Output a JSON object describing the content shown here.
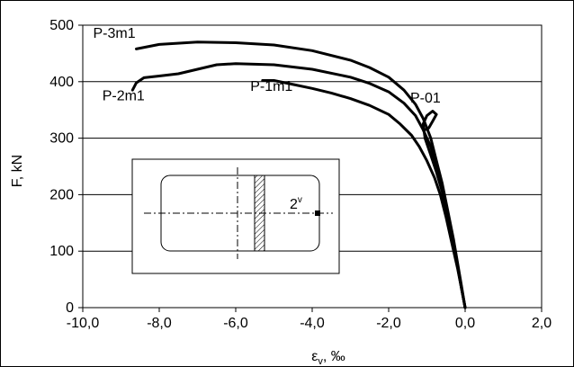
{
  "chart_data": {
    "type": "line",
    "title": "",
    "xlabel_main": "ε",
    "xlabel_sub": "v",
    "xlabel_rest": ", ‰",
    "ylabel": "F, kN",
    "xlim": [
      -10,
      2
    ],
    "ylim": [
      0,
      500
    ],
    "x_tick_values": [
      -10,
      -8,
      -6,
      -4,
      -2,
      0,
      2
    ],
    "x_tick_labels": [
      "-10,0",
      "-8,0",
      "-6,0",
      "-4,0",
      "-2,0",
      "0,0",
      "2,0"
    ],
    "y_tick_values": [
      0,
      100,
      200,
      300,
      400,
      500
    ],
    "y_tick_labels": [
      "0",
      "100",
      "200",
      "300",
      "400",
      "500"
    ],
    "grid": "horizontal",
    "series": [
      {
        "name": "P-3m1",
        "points": [
          [
            -8.6,
            458
          ],
          [
            -8.0,
            466
          ],
          [
            -7.0,
            470
          ],
          [
            -6.0,
            469
          ],
          [
            -5.0,
            465
          ],
          [
            -4.0,
            455
          ],
          [
            -3.0,
            438
          ],
          [
            -2.5,
            425
          ],
          [
            -2.0,
            408
          ],
          [
            -1.6,
            385
          ],
          [
            -1.3,
            360
          ],
          [
            -1.1,
            335
          ],
          [
            -0.9,
            300
          ],
          [
            -0.75,
            260
          ],
          [
            -0.6,
            220
          ],
          [
            -0.45,
            170
          ],
          [
            -0.3,
            120
          ],
          [
            -0.2,
            80
          ],
          [
            -0.1,
            40
          ],
          [
            0.0,
            0
          ]
        ]
      },
      {
        "name": "P-2m1",
        "points": [
          [
            -8.7,
            385
          ],
          [
            -8.6,
            398
          ],
          [
            -8.4,
            407
          ],
          [
            -8.0,
            410
          ],
          [
            -7.5,
            414
          ],
          [
            -7.0,
            422
          ],
          [
            -6.5,
            430
          ],
          [
            -6.0,
            432
          ],
          [
            -5.0,
            430
          ],
          [
            -4.0,
            422
          ],
          [
            -3.0,
            408
          ],
          [
            -2.5,
            397
          ],
          [
            -2.0,
            382
          ],
          [
            -1.6,
            362
          ],
          [
            -1.3,
            340
          ],
          [
            -1.1,
            315
          ],
          [
            -0.9,
            285
          ],
          [
            -0.75,
            250
          ],
          [
            -0.6,
            210
          ],
          [
            -0.45,
            165
          ],
          [
            -0.3,
            115
          ],
          [
            -0.2,
            75
          ],
          [
            -0.1,
            35
          ],
          [
            0.0,
            0
          ]
        ]
      },
      {
        "name": "P-1m1",
        "points": [
          [
            -5.3,
            402
          ],
          [
            -5.0,
            402
          ],
          [
            -4.5,
            395
          ],
          [
            -4.0,
            388
          ],
          [
            -3.5,
            380
          ],
          [
            -3.0,
            370
          ],
          [
            -2.5,
            358
          ],
          [
            -2.0,
            342
          ],
          [
            -1.7,
            325
          ],
          [
            -1.4,
            305
          ],
          [
            -1.2,
            285
          ],
          [
            -1.0,
            260
          ],
          [
            -0.8,
            230
          ],
          [
            -0.65,
            200
          ],
          [
            -0.5,
            160
          ],
          [
            -0.35,
            115
          ],
          [
            -0.2,
            70
          ],
          [
            -0.1,
            35
          ],
          [
            0.0,
            0
          ]
        ]
      },
      {
        "name": "P-01",
        "points": [
          [
            -1.05,
            315
          ],
          [
            -0.95,
            318
          ],
          [
            -0.85,
            330
          ],
          [
            -0.75,
            342
          ],
          [
            -0.85,
            348
          ],
          [
            -1.0,
            340
          ],
          [
            -1.1,
            325
          ],
          [
            -1.05,
            300
          ],
          [
            -0.9,
            270
          ],
          [
            -0.75,
            240
          ],
          [
            -0.6,
            205
          ],
          [
            -0.45,
            160
          ],
          [
            -0.3,
            110
          ],
          [
            -0.15,
            55
          ],
          [
            0.0,
            0
          ]
        ]
      }
    ],
    "series_labels": [
      {
        "text": "P-3m1",
        "x": -8.6,
        "y": 478
      },
      {
        "text": "P-2m1",
        "x": -8.7,
        "y": 367
      },
      {
        "text": "P-1m1",
        "x": -5.3,
        "y": 384
      },
      {
        "text": "P-01",
        "x": -1.2,
        "y": 363
      }
    ],
    "inset": {
      "label_main": "2",
      "label_sup": "v"
    }
  }
}
